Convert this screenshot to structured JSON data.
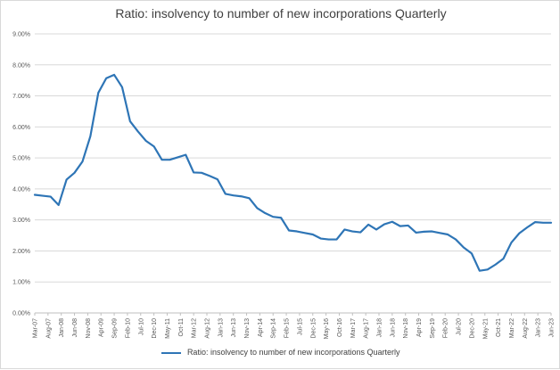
{
  "chart_data": {
    "type": "line",
    "title": "Ratio: insolvency to number of new incorporations Quarterly",
    "xlabel": "",
    "ylabel": "",
    "ylim": [
      0,
      0.09
    ],
    "yticks": [
      "0.00%",
      "1.00%",
      "2.00%",
      "3.00%",
      "4.00%",
      "5.00%",
      "6.00%",
      "7.00%",
      "8.00%",
      "9.00%"
    ],
    "grid": true,
    "legend_position": "bottom",
    "x_tick_labels": [
      "Mar-07",
      "Aug-07",
      "Jan-08",
      "Jun-08",
      "Nov-08",
      "Apr-09",
      "Sep-09",
      "Feb-10",
      "Jul-10",
      "Dec-10",
      "May-11",
      "Oct-11",
      "Mar-12",
      "Aug-12",
      "Jan-13",
      "Jun-13",
      "Nov-13",
      "Apr-14",
      "Sep-14",
      "Feb-15",
      "Jul-15",
      "Dec-15",
      "May-16",
      "Oct-16",
      "Mar-17",
      "Aug-17",
      "Jan-18",
      "Jun-18",
      "Nov-18",
      "Apr-19",
      "Sep-19",
      "Feb-20",
      "Jul-20",
      "Dec-20",
      "May-21",
      "Oct-21",
      "Mar-22",
      "Aug-22",
      "Jan-23",
      "Jun-23"
    ],
    "series": [
      {
        "name": "Ratio: insolvency to number of new incorporations Quarterly",
        "color": "#2e75b6",
        "x": [
          "Mar-07",
          "Jun-07",
          "Sep-07",
          "Dec-07",
          "Mar-08",
          "Jun-08",
          "Sep-08",
          "Dec-08",
          "Mar-09",
          "Jun-09",
          "Sep-09",
          "Dec-09",
          "Mar-10",
          "Jun-10",
          "Sep-10",
          "Dec-10",
          "Mar-11",
          "Jun-11",
          "Sep-11",
          "Dec-11",
          "Mar-12",
          "Jun-12",
          "Sep-12",
          "Dec-12",
          "Mar-13",
          "Jun-13",
          "Sep-13",
          "Dec-13",
          "Mar-14",
          "Jun-14",
          "Sep-14",
          "Dec-14",
          "Mar-15",
          "Jun-15",
          "Sep-15",
          "Dec-15",
          "Mar-16",
          "Jun-16",
          "Sep-16",
          "Dec-16",
          "Mar-17",
          "Jun-17",
          "Sep-17",
          "Dec-17",
          "Mar-18",
          "Jun-18",
          "Sep-18",
          "Dec-18",
          "Mar-19",
          "Jun-19",
          "Sep-19",
          "Dec-19",
          "Mar-20",
          "Jun-20",
          "Sep-20",
          "Dec-20",
          "Mar-21",
          "Jun-21",
          "Sep-21",
          "Dec-21",
          "Mar-22",
          "Jun-22",
          "Sep-22",
          "Dec-22",
          "Mar-23",
          "Jun-23"
        ],
        "values": [
          0.0381,
          0.0378,
          0.0375,
          0.0348,
          0.043,
          0.0452,
          0.0488,
          0.057,
          0.071,
          0.0757,
          0.0768,
          0.0728,
          0.0618,
          0.0585,
          0.0555,
          0.0537,
          0.0494,
          0.0494,
          0.0502,
          0.051,
          0.0453,
          0.0452,
          0.0442,
          0.0431,
          0.0384,
          0.0379,
          0.0376,
          0.037,
          0.0338,
          0.0322,
          0.031,
          0.0307,
          0.0266,
          0.0263,
          0.0258,
          0.0253,
          0.024,
          0.0237,
          0.0237,
          0.0269,
          0.0263,
          0.026,
          0.0285,
          0.0269,
          0.0286,
          0.0294,
          0.028,
          0.0282,
          0.0259,
          0.0262,
          0.0263,
          0.0258,
          0.0253,
          0.0237,
          0.0211,
          0.0192,
          0.0136,
          0.014,
          0.0156,
          0.0175,
          0.0227,
          0.0257,
          0.0276,
          0.0293,
          0.0291,
          0.0291
        ]
      }
    ]
  }
}
